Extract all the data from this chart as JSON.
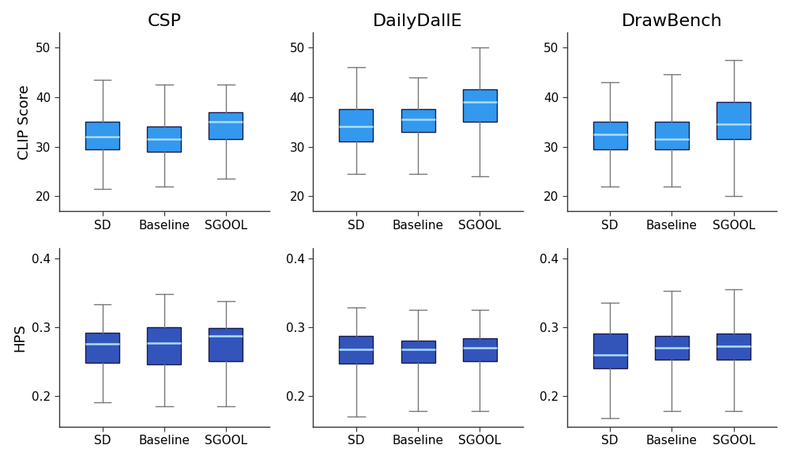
{
  "datasets": [
    "CSP",
    "DailyDallE",
    "DrawBench"
  ],
  "categories": [
    "SD",
    "Baseline",
    "SGOOL"
  ],
  "clip_boxes": {
    "CSP": {
      "SD": {
        "whislo": 21.5,
        "q1": 29.5,
        "med": 32.0,
        "q3": 35.0,
        "whishi": 43.5
      },
      "Baseline": {
        "whislo": 22.0,
        "q1": 29.0,
        "med": 31.5,
        "q3": 34.0,
        "whishi": 42.5
      },
      "SGOOL": {
        "whislo": 23.5,
        "q1": 31.5,
        "med": 35.0,
        "q3": 37.0,
        "whishi": 42.5
      }
    },
    "DailyDallE": {
      "SD": {
        "whislo": 24.5,
        "q1": 31.0,
        "med": 34.0,
        "q3": 37.5,
        "whishi": 46.0
      },
      "Baseline": {
        "whislo": 24.5,
        "q1": 33.0,
        "med": 35.5,
        "q3": 37.5,
        "whishi": 44.0
      },
      "SGOOL": {
        "whislo": 24.0,
        "q1": 35.0,
        "med": 39.0,
        "q3": 41.5,
        "whishi": 50.0
      }
    },
    "DrawBench": {
      "SD": {
        "whislo": 22.0,
        "q1": 29.5,
        "med": 32.5,
        "q3": 35.0,
        "whishi": 43.0
      },
      "Baseline": {
        "whislo": 22.0,
        "q1": 29.5,
        "med": 31.5,
        "q3": 35.0,
        "whishi": 44.5
      },
      "SGOOL": {
        "whislo": 20.0,
        "q1": 31.5,
        "med": 34.5,
        "q3": 39.0,
        "whishi": 47.5
      }
    }
  },
  "hps_boxes": {
    "CSP": {
      "SD": {
        "whislo": 0.19,
        "q1": 0.248,
        "med": 0.275,
        "q3": 0.292,
        "whishi": 0.333
      },
      "Baseline": {
        "whislo": 0.185,
        "q1": 0.246,
        "med": 0.277,
        "q3": 0.3,
        "whishi": 0.348
      },
      "SGOOL": {
        "whislo": 0.185,
        "q1": 0.25,
        "med": 0.287,
        "q3": 0.298,
        "whishi": 0.338
      }
    },
    "DailyDallE": {
      "SD": {
        "whislo": 0.17,
        "q1": 0.247,
        "med": 0.268,
        "q3": 0.287,
        "whishi": 0.328
      },
      "Baseline": {
        "whislo": 0.178,
        "q1": 0.248,
        "med": 0.268,
        "q3": 0.28,
        "whishi": 0.325
      },
      "SGOOL": {
        "whislo": 0.178,
        "q1": 0.25,
        "med": 0.27,
        "q3": 0.283,
        "whishi": 0.325
      }
    },
    "DrawBench": {
      "SD": {
        "whislo": 0.168,
        "q1": 0.24,
        "med": 0.26,
        "q3": 0.29,
        "whishi": 0.335
      },
      "Baseline": {
        "whislo": 0.178,
        "q1": 0.252,
        "med": 0.27,
        "q3": 0.287,
        "whishi": 0.352
      },
      "SGOOL": {
        "whislo": 0.178,
        "q1": 0.253,
        "med": 0.272,
        "q3": 0.29,
        "whishi": 0.355
      }
    }
  },
  "clip_ylim": [
    17,
    53
  ],
  "clip_yticks": [
    20,
    30,
    40,
    50
  ],
  "hps_ylim": [
    0.155,
    0.415
  ],
  "hps_yticks": [
    0.2,
    0.3,
    0.4
  ],
  "clip_box_facecolor": "#3399EE",
  "hps_box_facecolor": "#3355BB",
  "clip_box_edgecolor": "#1a1a4a",
  "hps_box_edgecolor": "#1a1a4a",
  "median_color": "#AADDFF",
  "whisker_color": "#777777",
  "cap_color": "#777777",
  "clip_ylabel": "CLIP Score",
  "hps_ylabel": "HPS",
  "title_fontsize": 16,
  "label_fontsize": 13,
  "tick_fontsize": 11,
  "background_color": "#ffffff"
}
